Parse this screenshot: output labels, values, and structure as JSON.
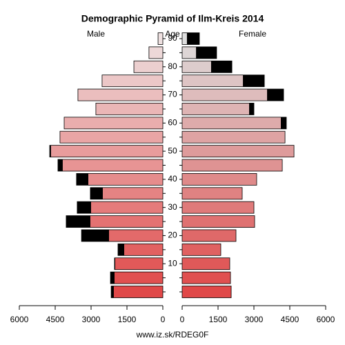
{
  "chart_data": {
    "type": "pyramid",
    "title": "Demographic Pyramid of Ilm-Kreis 2014",
    "y_label": "Age",
    "categories": [
      null,
      null,
      10,
      null,
      20,
      null,
      30,
      null,
      40,
      null,
      50,
      null,
      60,
      null,
      70,
      null,
      80,
      null,
      90
    ],
    "series": [
      {
        "name": "Male",
        "color_gradient": [
          "#e04848",
          "#eee0e0"
        ],
        "values": [
          2160,
          2190,
          2020,
          1875,
          3400,
          4040,
          3580,
          3030,
          3610,
          4385,
          4730,
          4300,
          4125,
          2800,
          3550,
          2540,
          1210,
          580,
          200
        ]
      },
      {
        "name": "Female",
        "color_gradient": [
          "#e04848",
          "#dddddd"
        ],
        "values": [
          2050,
          2020,
          1990,
          1615,
          2250,
          3030,
          3000,
          2510,
          3115,
          4185,
          4675,
          4300,
          4355,
          3000,
          4240,
          3435,
          2080,
          1440,
          720
        ]
      }
    ],
    "excess_color": "#000000",
    "xlim": [
      0,
      6000
    ],
    "xticks": [
      0,
      1500,
      3000,
      4500,
      6000
    ],
    "footer": "www.iz.sk/RDEG0F"
  }
}
